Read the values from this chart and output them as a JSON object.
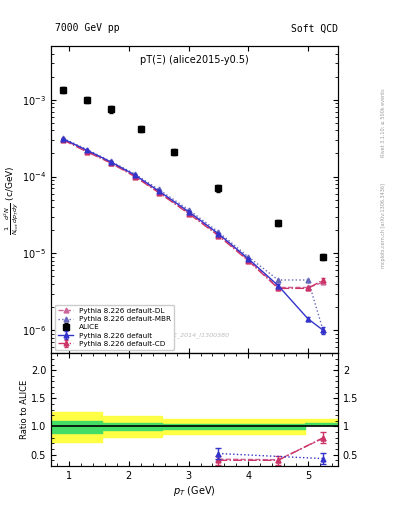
{
  "title_left": "7000 GeV pp",
  "title_right": "Soft QCD",
  "plot_label": "pT(Ξ) (alice2015-y0.5)",
  "watermark": "ALICE_2014_I1300380",
  "right_label_top": "Rivet 3.1.10; ≥ 500k events",
  "right_label_bot": "mcplots.cern.ch [arXiv:1306.3436]",
  "alice_pt": [
    0.9,
    1.3,
    1.7,
    2.2,
    2.75,
    3.5,
    4.5,
    5.25
  ],
  "alice_y": [
    0.00135,
    0.001,
    0.00075,
    0.00042,
    0.00021,
    7e-05,
    2.5e-05,
    9e-06
  ],
  "alice_yerrlo": [
    0.00012,
    9e-05,
    7e-05,
    4e-05,
    2e-05,
    7e-06,
    2.5e-06,
    9e-07
  ],
  "alice_yerrhi": [
    0.00012,
    9e-05,
    7e-05,
    4e-05,
    2e-05,
    7e-06,
    2.5e-06,
    9e-07
  ],
  "pythia_pt": [
    0.9,
    1.3,
    1.7,
    2.1,
    2.5,
    3.0,
    3.5,
    4.0,
    4.5,
    5.0,
    5.25
  ],
  "pythia_default": [
    0.00031,
    0.00022,
    0.000155,
    0.000105,
    6.5e-05,
    3.5e-05,
    1.8e-05,
    8.5e-06,
    3.8e-06,
    1.4e-06,
    1e-06
  ],
  "pythia_CD": [
    0.0003,
    0.00021,
    0.00015,
    0.0001,
    6.2e-05,
    3.3e-05,
    1.7e-05,
    8e-06,
    3.5e-06,
    3.5e-06,
    4.5e-06
  ],
  "pythia_DL": [
    0.000305,
    0.000215,
    0.000152,
    0.000102,
    6.3e-05,
    3.4e-05,
    1.75e-05,
    8.2e-06,
    3.6e-06,
    3.6e-06,
    4.2e-06
  ],
  "pythia_MBR": [
    0.000315,
    0.000225,
    0.000158,
    0.000108,
    6.8e-05,
    3.7e-05,
    1.9e-05,
    9e-06,
    4.5e-06,
    4.5e-06,
    1e-06
  ],
  "pythia_default_yerr": [
    5e-06,
    4e-06,
    3e-06,
    2e-06,
    1.5e-06,
    1e-06,
    5e-07,
    3e-07,
    2e-07,
    1e-07,
    1e-07
  ],
  "pythia_CD_yerr": [
    5e-06,
    4e-06,
    3e-06,
    2e-06,
    1.5e-06,
    1e-06,
    5e-07,
    3e-07,
    2e-07,
    2e-07,
    3e-07
  ],
  "ratio_alice_pt": [
    0.9,
    1.3,
    1.7,
    2.2,
    2.75,
    3.5,
    4.5,
    5.25
  ],
  "ratio_default": [
    null,
    null,
    null,
    null,
    null,
    0.52,
    null,
    0.43
  ],
  "ratio_CD": [
    null,
    null,
    null,
    null,
    null,
    0.4,
    0.4,
    0.8
  ],
  "ratio_DL": [
    null,
    null,
    null,
    null,
    null,
    0.42,
    0.41,
    0.79
  ],
  "ratio_MBR": [
    null,
    null,
    null,
    null,
    null,
    null,
    null,
    null
  ],
  "ratio_default_err": [
    null,
    null,
    null,
    null,
    null,
    0.1,
    null,
    0.1
  ],
  "ratio_CD_err": [
    null,
    null,
    null,
    null,
    null,
    0.08,
    0.08,
    0.1
  ],
  "yellow_band_edges": [
    0.7,
    1.1,
    1.55,
    2.05,
    2.55,
    3.1,
    3.6,
    4.1,
    4.6,
    4.95,
    5.55
  ],
  "yellow_lo": [
    0.73,
    0.73,
    0.82,
    0.82,
    0.87,
    0.87,
    0.87,
    0.87,
    0.87,
    1.07,
    1.07
  ],
  "yellow_hi": [
    1.25,
    1.25,
    1.18,
    1.18,
    1.13,
    1.13,
    1.13,
    1.13,
    1.13,
    1.13,
    1.13
  ],
  "green_lo": [
    0.88,
    0.88,
    0.93,
    0.93,
    0.96,
    0.96,
    0.96,
    0.96,
    0.96,
    1.02,
    1.02
  ],
  "green_hi": [
    1.1,
    1.1,
    1.07,
    1.07,
    1.04,
    1.04,
    1.04,
    1.04,
    1.04,
    1.07,
    1.07
  ],
  "color_default": "#3333cc",
  "color_CD": "#cc3366",
  "color_DL": "#cc6699",
  "color_MBR": "#6666bb",
  "color_alice": "#000000",
  "color_yellow": "#ffff44",
  "color_green": "#44dd66",
  "ylim_main": [
    5e-07,
    0.005
  ],
  "xlim": [
    0.7,
    5.5
  ],
  "ylim_ratio": [
    0.3,
    2.3
  ],
  "ratio_yticks": [
    0.5,
    1.0,
    1.5,
    2.0
  ]
}
